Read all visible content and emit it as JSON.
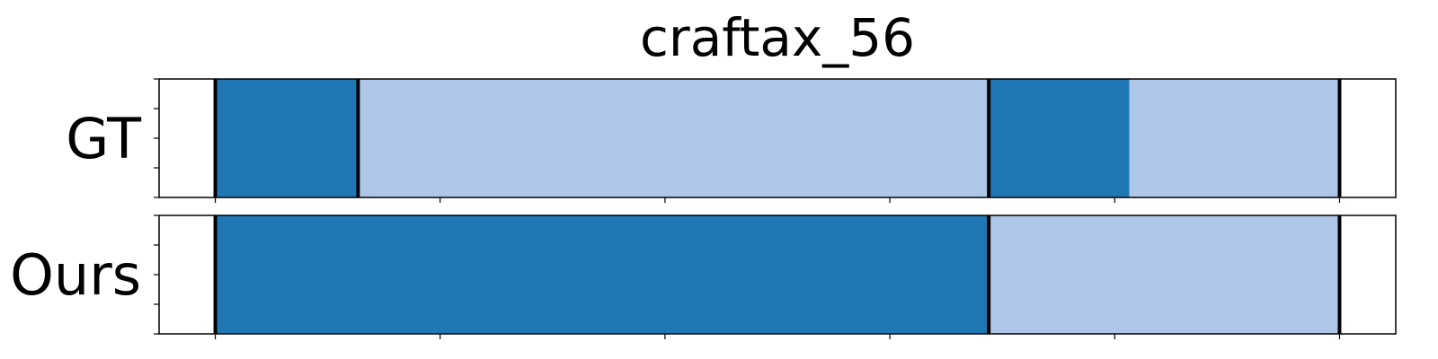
{
  "chart_data": {
    "type": "segmentation-timeline",
    "title": "craftax_56",
    "xlim": [
      -0.5,
      10.5
    ],
    "xticks": [
      0,
      2,
      4,
      6,
      8,
      10
    ],
    "show_tick_labels": false,
    "segment_colors": {
      "dark": "#1f77b4",
      "light": "#aec7e8"
    },
    "boundary_color": "#000000",
    "rows": [
      {
        "label": "GT",
        "segments": [
          {
            "start": 0.0,
            "end": 1.27,
            "class": "dark"
          },
          {
            "start": 1.27,
            "end": 6.88,
            "class": "light"
          },
          {
            "start": 6.88,
            "end": 8.13,
            "class": "dark"
          },
          {
            "start": 8.13,
            "end": 10.0,
            "class": "light"
          }
        ],
        "boundaries": [
          0.0,
          1.27,
          6.88,
          10.0
        ]
      },
      {
        "label": "Ours",
        "segments": [
          {
            "start": 0.0,
            "end": 6.88,
            "class": "dark"
          },
          {
            "start": 6.88,
            "end": 10.0,
            "class": "light"
          }
        ],
        "boundaries": [
          0.0,
          6.88,
          10.0
        ]
      }
    ]
  }
}
